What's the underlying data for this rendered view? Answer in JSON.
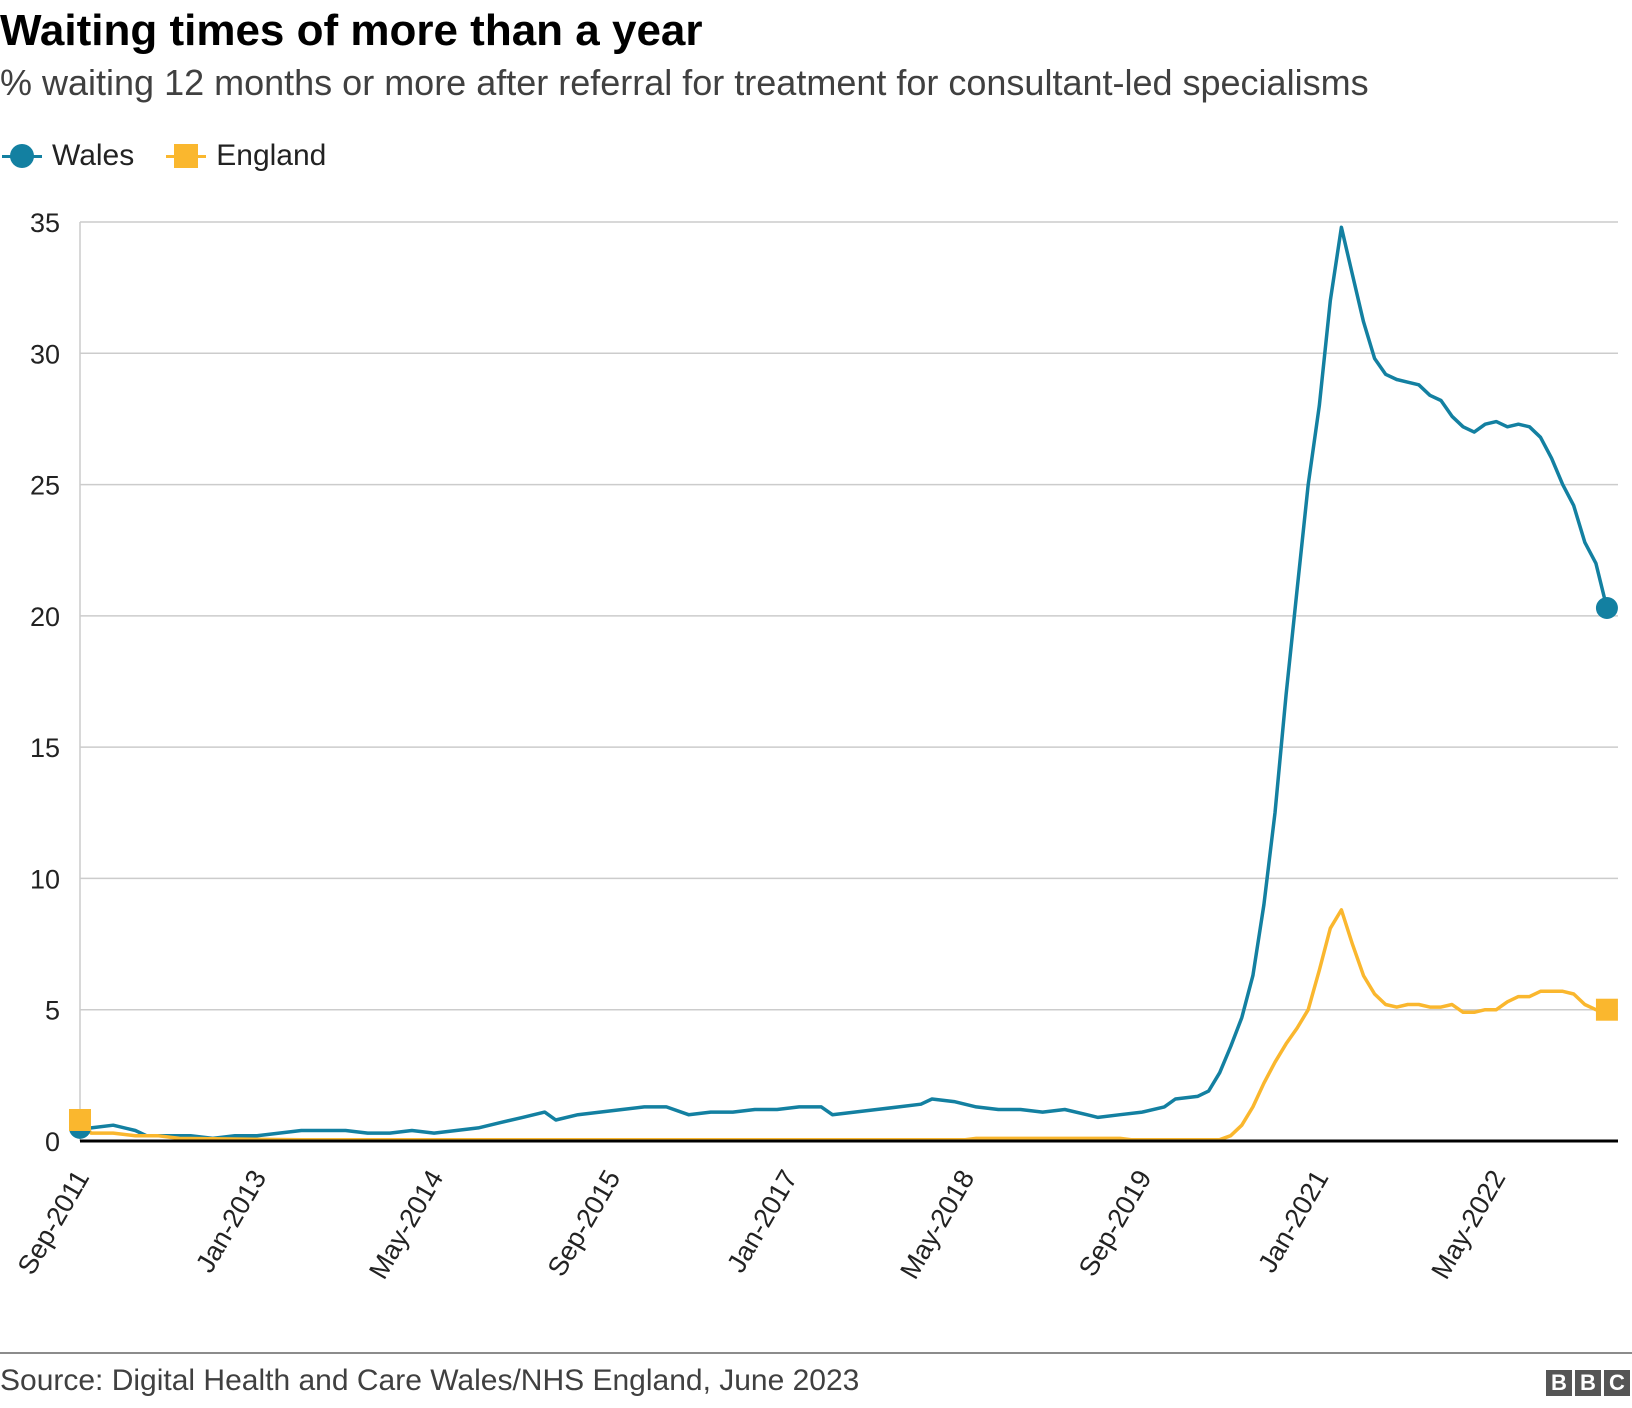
{
  "header": {
    "title": "Waiting times of more than a year",
    "subtitle": "% waiting 12 months or more after referral for treatment for consultant-led specialisms"
  },
  "legend": [
    {
      "label": "Wales",
      "color": "#1380a1",
      "marker": "circle"
    },
    {
      "label": "England",
      "color": "#fab72e",
      "marker": "square"
    }
  ],
  "footer": {
    "source": "Source: Digital Health and Care Wales/NHS England, June 2023",
    "logo_letters": [
      "B",
      "B",
      "C"
    ]
  },
  "chart_data": {
    "type": "line",
    "title": "Waiting times of more than a year",
    "xlabel": "",
    "ylabel": "",
    "ylim": [
      0,
      35
    ],
    "yticks": [
      0,
      5,
      10,
      15,
      20,
      25,
      30,
      35
    ],
    "x_start": "Sep-2011",
    "x_end": "Apr-2023",
    "x_unit": "month index from Sep-2011",
    "xlim": [
      0,
      139
    ],
    "xtick_labels": [
      "Sep-2011",
      "Jan-2013",
      "May-2014",
      "Sep-2015",
      "Jan-2017",
      "May-2018",
      "Sep-2019",
      "Jan-2021",
      "May-2022"
    ],
    "xtick_positions": [
      0,
      16,
      32,
      48,
      64,
      80,
      96,
      112,
      128
    ],
    "grid": true,
    "series": [
      {
        "name": "Wales",
        "color": "#1380a1",
        "points": [
          [
            0,
            0.5
          ],
          [
            1,
            0.5
          ],
          [
            3,
            0.6
          ],
          [
            5,
            0.4
          ],
          [
            6,
            0.2
          ],
          [
            8,
            0.2
          ],
          [
            10,
            0.2
          ],
          [
            12,
            0.1
          ],
          [
            14,
            0.2
          ],
          [
            16,
            0.2
          ],
          [
            18,
            0.3
          ],
          [
            20,
            0.4
          ],
          [
            22,
            0.4
          ],
          [
            24,
            0.4
          ],
          [
            26,
            0.3
          ],
          [
            28,
            0.3
          ],
          [
            30,
            0.4
          ],
          [
            32,
            0.3
          ],
          [
            34,
            0.4
          ],
          [
            36,
            0.5
          ],
          [
            38,
            0.7
          ],
          [
            40,
            0.9
          ],
          [
            42,
            1.1
          ],
          [
            43,
            0.8
          ],
          [
            45,
            1.0
          ],
          [
            47,
            1.1
          ],
          [
            49,
            1.2
          ],
          [
            51,
            1.3
          ],
          [
            53,
            1.3
          ],
          [
            55,
            1.0
          ],
          [
            57,
            1.1
          ],
          [
            59,
            1.1
          ],
          [
            61,
            1.2
          ],
          [
            63,
            1.2
          ],
          [
            65,
            1.3
          ],
          [
            67,
            1.3
          ],
          [
            68,
            1.0
          ],
          [
            70,
            1.1
          ],
          [
            72,
            1.2
          ],
          [
            74,
            1.3
          ],
          [
            76,
            1.4
          ],
          [
            77,
            1.6
          ],
          [
            79,
            1.5
          ],
          [
            81,
            1.3
          ],
          [
            83,
            1.2
          ],
          [
            85,
            1.2
          ],
          [
            87,
            1.1
          ],
          [
            89,
            1.2
          ],
          [
            91,
            1.0
          ],
          [
            92,
            0.9
          ],
          [
            94,
            1.0
          ],
          [
            96,
            1.1
          ],
          [
            98,
            1.3
          ],
          [
            99,
            1.6
          ],
          [
            101,
            1.7
          ],
          [
            102,
            1.9
          ],
          [
            103,
            2.6
          ],
          [
            104,
            3.6
          ],
          [
            105,
            4.7
          ],
          [
            106,
            6.3
          ],
          [
            107,
            9.0
          ],
          [
            108,
            12.5
          ],
          [
            109,
            17.0
          ],
          [
            110,
            21.0
          ],
          [
            111,
            25.0
          ],
          [
            112,
            28.0
          ],
          [
            113,
            32.0
          ],
          [
            114,
            34.8
          ],
          [
            115,
            33.0
          ],
          [
            116,
            31.2
          ],
          [
            117,
            29.8
          ],
          [
            118,
            29.2
          ],
          [
            119,
            29.0
          ],
          [
            120,
            28.9
          ],
          [
            121,
            28.8
          ],
          [
            122,
            28.4
          ],
          [
            123,
            28.2
          ],
          [
            124,
            27.6
          ],
          [
            125,
            27.2
          ],
          [
            126,
            27.0
          ],
          [
            127,
            27.3
          ],
          [
            128,
            27.4
          ],
          [
            129,
            27.2
          ],
          [
            130,
            27.3
          ],
          [
            131,
            27.2
          ],
          [
            132,
            26.8
          ],
          [
            133,
            26.0
          ],
          [
            134,
            25.0
          ],
          [
            135,
            24.2
          ],
          [
            136,
            22.8
          ],
          [
            137,
            22.0
          ],
          [
            138,
            20.3
          ]
        ]
      },
      {
        "name": "England",
        "color": "#fab72e",
        "points": [
          [
            0,
            0.8
          ],
          [
            1,
            0.3
          ],
          [
            3,
            0.3
          ],
          [
            5,
            0.2
          ],
          [
            7,
            0.2
          ],
          [
            9,
            0.1
          ],
          [
            20,
            0.05
          ],
          [
            80,
            0.05
          ],
          [
            81,
            0.1
          ],
          [
            94,
            0.1
          ],
          [
            95,
            0.05
          ],
          [
            103,
            0.05
          ],
          [
            104,
            0.2
          ],
          [
            105,
            0.6
          ],
          [
            106,
            1.3
          ],
          [
            107,
            2.2
          ],
          [
            108,
            3.0
          ],
          [
            109,
            3.7
          ],
          [
            110,
            4.3
          ],
          [
            111,
            5.0
          ],
          [
            112,
            6.5
          ],
          [
            113,
            8.1
          ],
          [
            114,
            8.8
          ],
          [
            115,
            7.5
          ],
          [
            116,
            6.3
          ],
          [
            117,
            5.6
          ],
          [
            118,
            5.2
          ],
          [
            119,
            5.1
          ],
          [
            120,
            5.2
          ],
          [
            121,
            5.2
          ],
          [
            122,
            5.1
          ],
          [
            123,
            5.1
          ],
          [
            124,
            5.2
          ],
          [
            125,
            4.9
          ],
          [
            126,
            4.9
          ],
          [
            127,
            5.0
          ],
          [
            128,
            5.0
          ],
          [
            129,
            5.3
          ],
          [
            130,
            5.5
          ],
          [
            131,
            5.5
          ],
          [
            132,
            5.7
          ],
          [
            133,
            5.7
          ],
          [
            134,
            5.7
          ],
          [
            135,
            5.6
          ],
          [
            136,
            5.2
          ],
          [
            137,
            5.0
          ],
          [
            138,
            5.0
          ]
        ]
      }
    ]
  }
}
